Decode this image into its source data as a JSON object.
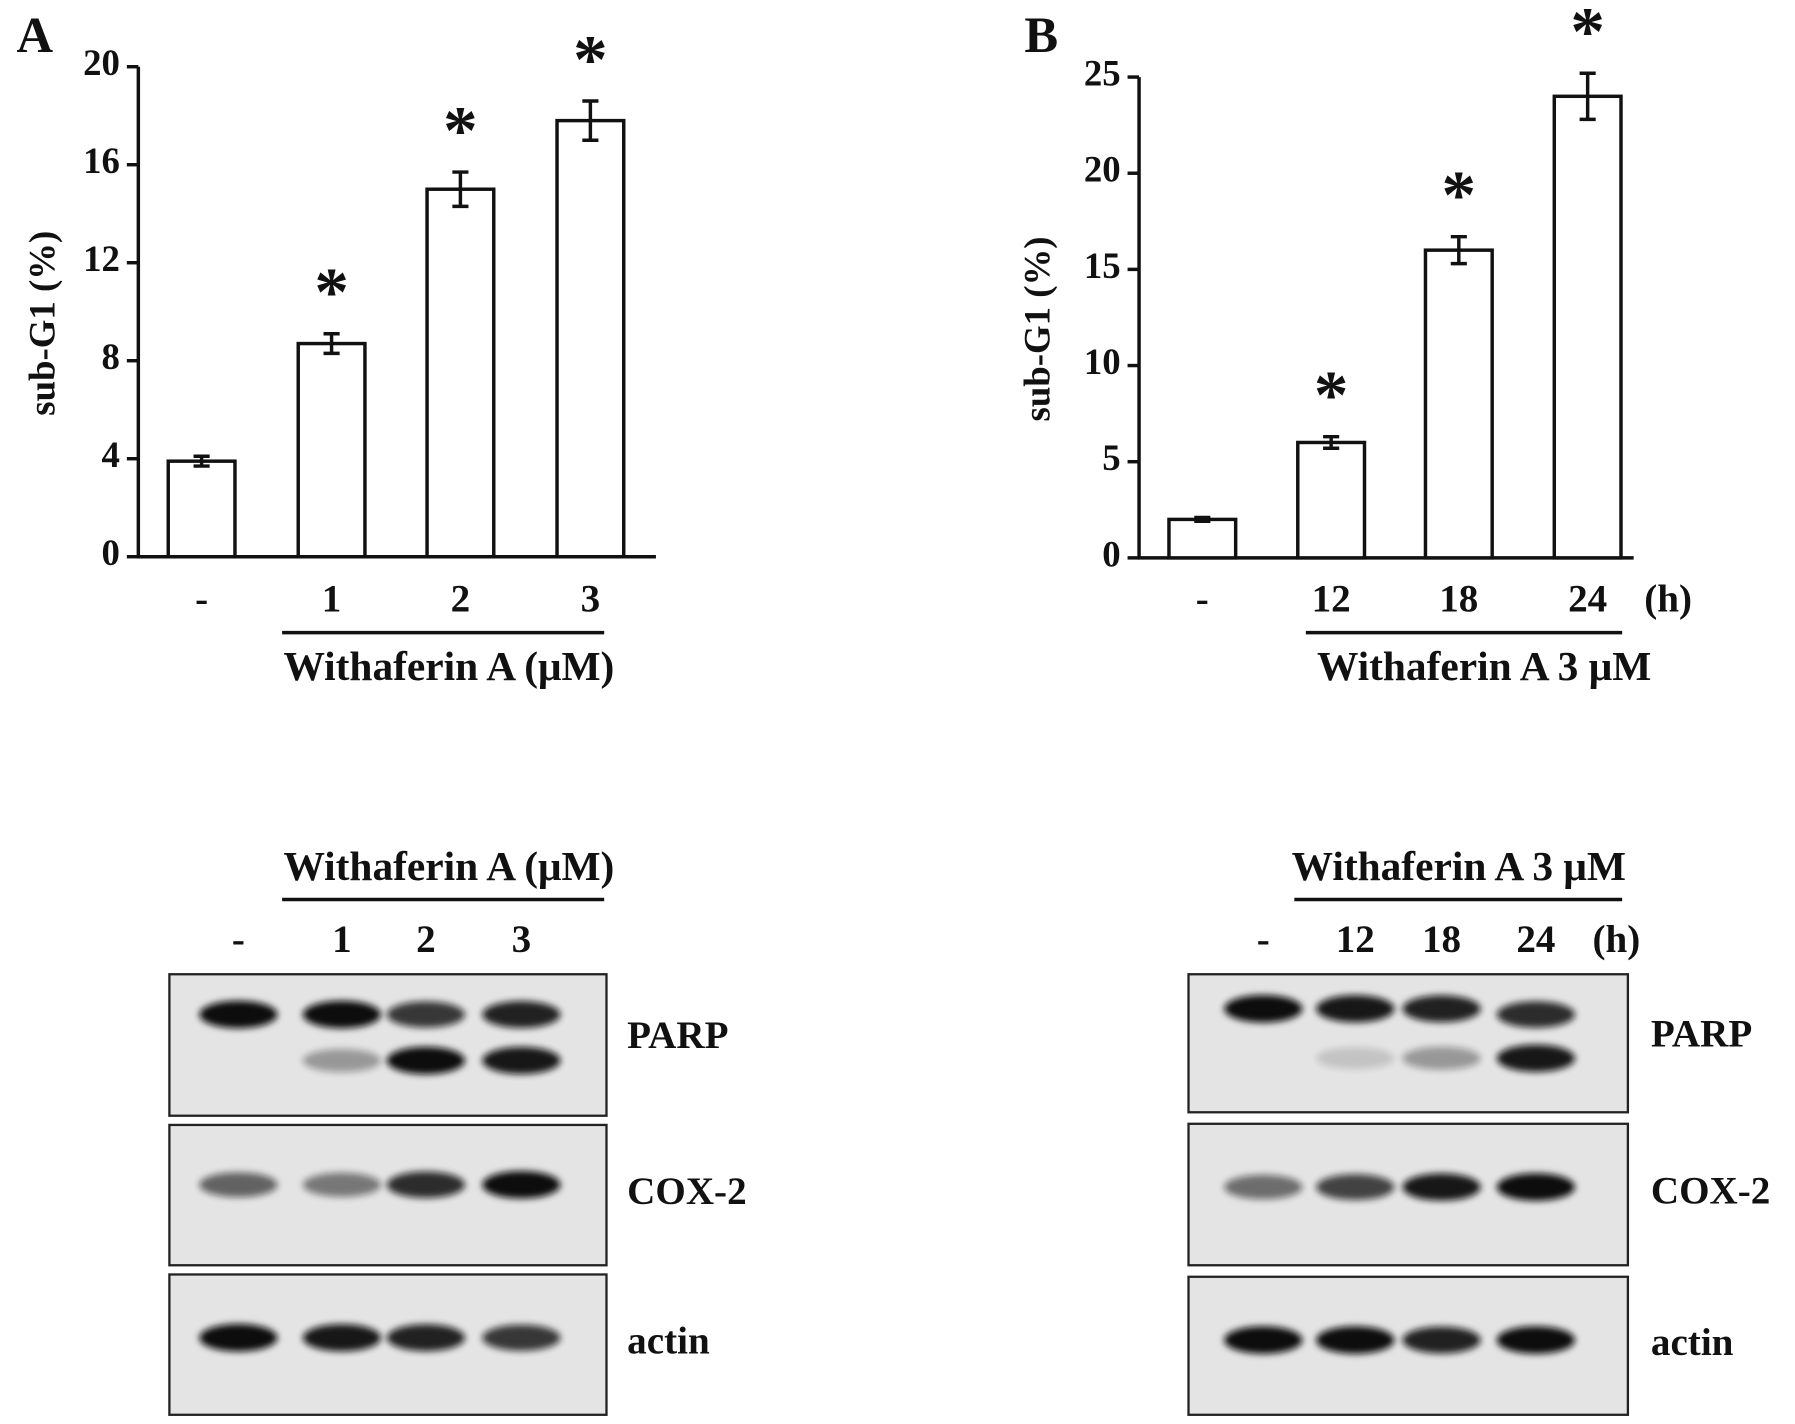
{
  "chart_data": [
    {
      "type": "bar",
      "panel": "A",
      "ylabel": "sub-G1 (%)",
      "xlabel": "Withaferin A (μM)",
      "categories": [
        "-",
        "1",
        "2",
        "3"
      ],
      "values": [
        3.9,
        8.7,
        15.0,
        17.8
      ],
      "errors": [
        0.2,
        0.4,
        0.7,
        0.8
      ],
      "significance": [
        null,
        "*",
        "*",
        "*"
      ],
      "color": "#ffffff",
      "ylim": [
        0,
        20
      ],
      "yticks": [
        0,
        4,
        8,
        12,
        16,
        20
      ]
    },
    {
      "type": "bar",
      "panel": "B",
      "ylabel": "sub-G1 (%)",
      "xlabel": "Withaferin A 3 μM",
      "x_unit": "(h)",
      "categories": [
        "-",
        "12",
        "18",
        "24"
      ],
      "values": [
        2.0,
        6.0,
        16.0,
        24.0
      ],
      "errors": [
        0.1,
        0.3,
        0.7,
        1.2
      ],
      "significance": [
        null,
        "*",
        "*",
        "*"
      ],
      "color": "#ffffff",
      "ylim": [
        0,
        25
      ],
      "yticks": [
        0,
        5,
        10,
        15,
        20,
        25
      ]
    }
  ],
  "blots": [
    {
      "header": "Withaferin A (μM)",
      "lanes": [
        "-",
        "1",
        "2",
        "3"
      ],
      "proteins": [
        "PARP",
        "COX-2",
        "actin"
      ]
    },
    {
      "header": "Withaferin A 3 μM",
      "lanes": [
        "-",
        "12",
        "18",
        "24"
      ],
      "unit": "(h)",
      "proteins": [
        "PARP",
        "COX-2",
        "actin"
      ]
    }
  ]
}
